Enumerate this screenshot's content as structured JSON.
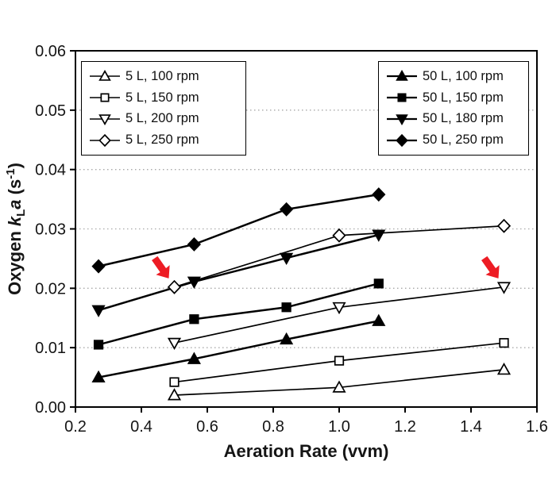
{
  "figure": {
    "background": "#ffffff"
  },
  "chart_data": {
    "type": "line",
    "title": "",
    "xlabel": "Aeration Rate (vvm)",
    "ylabel": "Oxygen kLa (s-1)",
    "ylabel_parts": [
      {
        "t": "Oxygen ",
        "style": "bold"
      },
      {
        "t": "k",
        "style": "bold-italic"
      },
      {
        "t": "L",
        "style": "sub"
      },
      {
        "t": "a",
        "style": "bold-italic"
      },
      {
        "t": " (s",
        "style": "bold"
      },
      {
        "t": "-1",
        "style": "sup"
      },
      {
        "t": ")",
        "style": "bold"
      }
    ],
    "x_axis": {
      "min": 0.2,
      "max": 1.6,
      "ticks": [
        0.2,
        0.4,
        0.6,
        0.8,
        1.0,
        1.2,
        1.4,
        1.6
      ],
      "tick_labels": [
        "0.2",
        "0.4",
        "0.6",
        "0.8",
        "1.0",
        "1.2",
        "1.4",
        "1.6"
      ]
    },
    "y_axis": {
      "min": 0,
      "max": 0.06,
      "ticks": [
        0,
        0.01,
        0.02,
        0.03,
        0.04,
        0.05,
        0.06
      ],
      "tick_labels": [
        "0.00",
        "0.01",
        "0.02",
        "0.03",
        "0.04",
        "0.05",
        "0.06"
      ],
      "gridlines": [
        0.01,
        0.02,
        0.03,
        0.04,
        0.05
      ]
    },
    "grid": "horizontal-dotted",
    "line_color": "#000000",
    "series": [
      {
        "name": "5 L, 100 rpm",
        "marker": "triangle-up",
        "fill": "open",
        "x": [
          0.5,
          1.0,
          1.5
        ],
        "y": [
          0.002,
          0.0033,
          0.0063
        ]
      },
      {
        "name": "5 L, 150 rpm",
        "marker": "square",
        "fill": "open",
        "x": [
          0.5,
          1.0,
          1.5
        ],
        "y": [
          0.0042,
          0.0078,
          0.0108
        ]
      },
      {
        "name": "5 L, 200 rpm",
        "marker": "triangle-down",
        "fill": "open",
        "x": [
          0.5,
          1.0,
          1.5
        ],
        "y": [
          0.0108,
          0.0168,
          0.0202
        ]
      },
      {
        "name": "5 L, 250 rpm",
        "marker": "diamond",
        "fill": "open",
        "x": [
          0.5,
          1.0,
          1.5
        ],
        "y": [
          0.0202,
          0.0289,
          0.0305
        ]
      },
      {
        "name": "50 L, 100 rpm",
        "marker": "triangle-up",
        "fill": "filled",
        "x": [
          0.27,
          0.56,
          0.84,
          1.12
        ],
        "y": [
          0.005,
          0.0081,
          0.0114,
          0.0145
        ]
      },
      {
        "name": "50 L, 150 rpm",
        "marker": "square",
        "fill": "filled",
        "x": [
          0.27,
          0.56,
          0.84,
          1.12
        ],
        "y": [
          0.0105,
          0.0148,
          0.0168,
          0.0208
        ]
      },
      {
        "name": "50 L, 180 rpm",
        "marker": "triangle-down",
        "fill": "filled",
        "x": [
          0.27,
          0.56,
          0.84,
          1.12
        ],
        "y": [
          0.0163,
          0.0211,
          0.0251,
          0.029
        ]
      },
      {
        "name": "50 L, 250 rpm",
        "marker": "diamond",
        "fill": "filled",
        "x": [
          0.27,
          0.56,
          0.84,
          1.12
        ],
        "y": [
          0.0237,
          0.0274,
          0.0333,
          0.0358
        ]
      }
    ],
    "legend": {
      "groups": [
        {
          "name": "5 L",
          "position": "left",
          "series": [
            0,
            1,
            2,
            3
          ]
        },
        {
          "name": "50 L",
          "position": "right",
          "series": [
            4,
            5,
            6,
            7
          ]
        }
      ]
    },
    "annotations": [
      {
        "shape": "arrow",
        "color": "#ed1c24",
        "x": 0.5,
        "y": 0.0202,
        "angle": 55
      },
      {
        "shape": "arrow",
        "color": "#ed1c24",
        "x": 1.5,
        "y": 0.0202,
        "angle": 55
      }
    ]
  }
}
